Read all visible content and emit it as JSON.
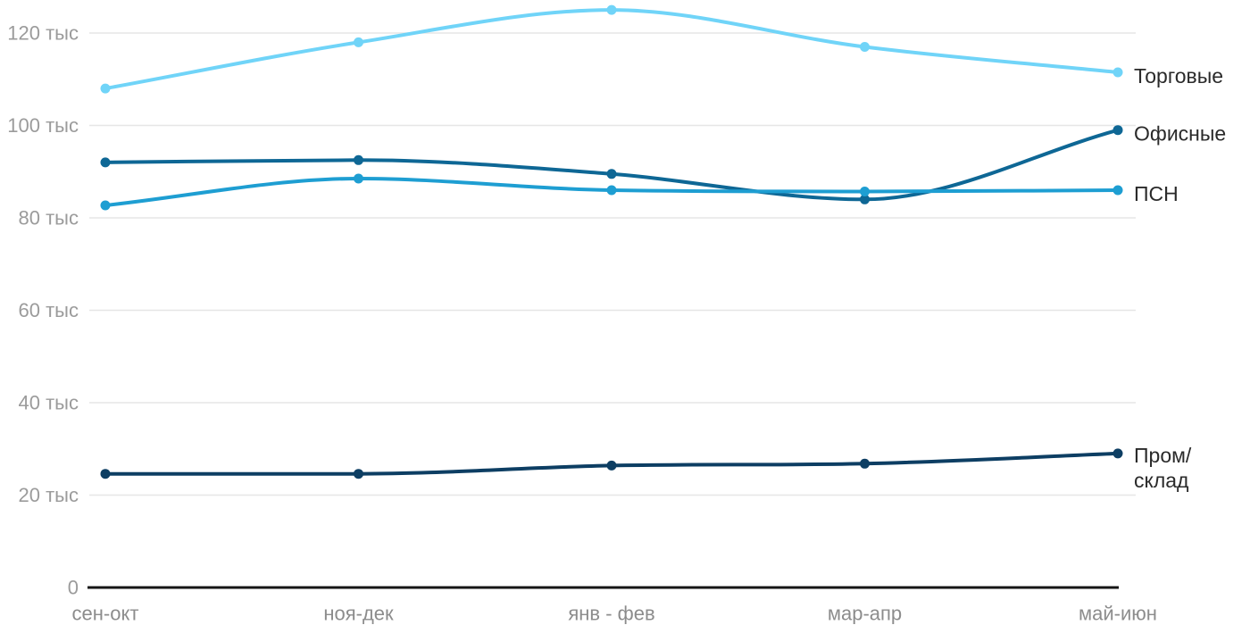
{
  "chart_data": {
    "type": "line",
    "title": "",
    "categories": [
      "сен-окт",
      "ноя-дек",
      "янв - фев",
      "мар-апр",
      "май-июн"
    ],
    "series": [
      {
        "name": "Торговые",
        "color": "#70d4f8",
        "values": [
          108,
          118,
          125,
          117,
          111.5
        ]
      },
      {
        "name": "Офисные",
        "color": "#0e6795",
        "values": [
          92,
          92.5,
          89.5,
          84,
          99
        ]
      },
      {
        "name": "ПСН",
        "color": "#1e9ed2",
        "values": [
          82.7,
          88.5,
          86,
          85.7,
          86
        ]
      },
      {
        "name": "Пром/склад",
        "color": "#0d3e63",
        "values": [
          24.6,
          24.6,
          26.4,
          26.8,
          29
        ],
        "label_lines": [
          "Пром/",
          "склад"
        ]
      }
    ],
    "y_axis": {
      "ticks": [
        0,
        20,
        40,
        60,
        80,
        100,
        120
      ],
      "tick_labels": [
        "0",
        "20 тыс",
        "40 тыс",
        "60 тыс",
        "80 тыс",
        "100 тыс",
        "120 тыс"
      ],
      "range": [
        0,
        130
      ],
      "unit": "тыс"
    },
    "x_axis": {
      "label": ""
    },
    "grid": true,
    "legend_position": "right-of-line-ends",
    "point_markers": true
  }
}
